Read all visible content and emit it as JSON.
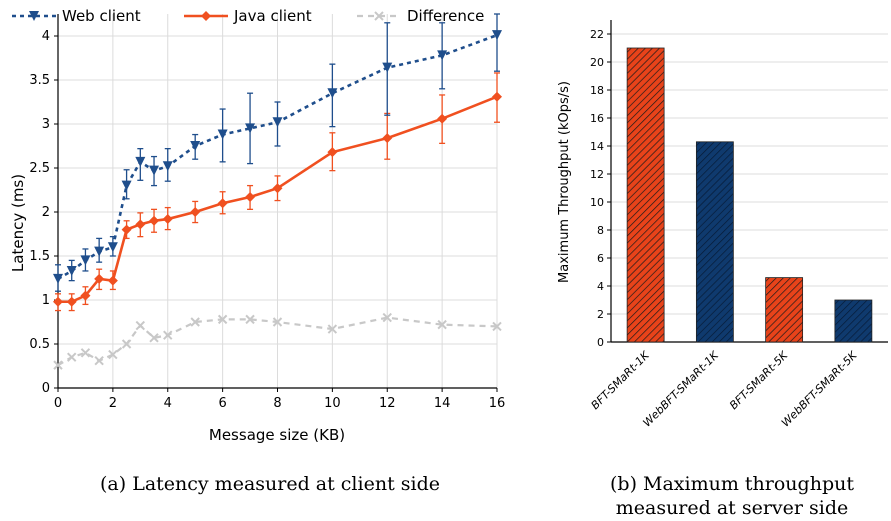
{
  "chart_data": [
    {
      "type": "line",
      "xlabel": "Message size (KB)",
      "ylabel": "Latency (ms)",
      "xlim": [
        0,
        16
      ],
      "ylim": [
        0,
        4.25
      ],
      "xticks": [
        "0",
        "2",
        "4",
        "6",
        "8",
        "10",
        "12",
        "14",
        "16"
      ],
      "yticks": [
        "0",
        "0.5",
        "1",
        "1.5",
        "2",
        "2.5",
        "3",
        "3.5",
        "4"
      ],
      "grid": "both",
      "legend_position": "top",
      "caption": "(a) Latency measured at client side",
      "series": [
        {
          "name": "Web client",
          "color": "#1f4e8c",
          "style": "dotted",
          "marker": "triangle-down",
          "x": [
            0,
            0.5,
            1,
            1.5,
            2,
            2.5,
            3,
            3.5,
            4,
            5,
            6,
            7,
            8,
            10,
            12,
            14,
            16
          ],
          "y": [
            1.24,
            1.33,
            1.45,
            1.55,
            1.6,
            2.3,
            2.57,
            2.47,
            2.52,
            2.75,
            2.88,
            2.95,
            3.02,
            3.35,
            3.64,
            3.78,
            4.01
          ],
          "err_low": [
            1.1,
            1.22,
            1.33,
            1.43,
            1.5,
            2.15,
            2.36,
            2.3,
            2.35,
            2.6,
            2.57,
            2.55,
            2.75,
            2.97,
            3.1,
            3.4,
            3.6
          ],
          "err_high": [
            1.4,
            1.45,
            1.58,
            1.7,
            1.72,
            2.48,
            2.72,
            2.63,
            2.72,
            2.88,
            3.17,
            3.35,
            3.25,
            3.68,
            4.15,
            4.15,
            4.25
          ]
        },
        {
          "name": "Java client",
          "color": "#f05020",
          "style": "solid",
          "marker": "diamond",
          "x": [
            0,
            0.5,
            1,
            1.5,
            2,
            2.5,
            3,
            3.5,
            4,
            5,
            6,
            7,
            8,
            10,
            12,
            14,
            16
          ],
          "y": [
            0.98,
            0.98,
            1.05,
            1.24,
            1.22,
            1.8,
            1.86,
            1.9,
            1.92,
            2.0,
            2.1,
            2.17,
            2.27,
            2.68,
            2.84,
            3.06,
            3.31
          ],
          "err_low": [
            0.88,
            0.88,
            0.95,
            1.12,
            1.12,
            1.7,
            1.72,
            1.77,
            1.8,
            1.88,
            1.98,
            2.03,
            2.13,
            2.47,
            2.6,
            2.78,
            3.02
          ],
          "err_high": [
            1.07,
            1.07,
            1.15,
            1.35,
            1.33,
            1.9,
            1.99,
            2.03,
            2.05,
            2.12,
            2.23,
            2.3,
            2.41,
            2.9,
            3.12,
            3.33,
            3.58
          ]
        },
        {
          "name": "Difference",
          "color": "#c8c8c8",
          "style": "dashed",
          "marker": "x",
          "x": [
            0,
            0.5,
            1,
            1.5,
            2,
            2.5,
            3,
            3.5,
            4,
            5,
            6,
            7,
            8,
            10,
            12,
            14,
            16
          ],
          "y": [
            0.26,
            0.35,
            0.4,
            0.31,
            0.38,
            0.5,
            0.71,
            0.57,
            0.6,
            0.75,
            0.78,
            0.78,
            0.75,
            0.67,
            0.8,
            0.72,
            0.7
          ]
        }
      ]
    },
    {
      "type": "bar",
      "ylabel": "Maximum Throughput (kOps/s)",
      "ylim": [
        0,
        23
      ],
      "yticks": [
        "0",
        "2",
        "4",
        "6",
        "8",
        "10",
        "12",
        "14",
        "16",
        "18",
        "20",
        "22"
      ],
      "grid": "y",
      "caption_line1": "(b) Maximum throughput",
      "caption_line2": "measured at server side",
      "categories": [
        "BFT-SMaRt-1K",
        "WebBFT-SMaRt-1K",
        "BFT-SMaRt-5K",
        "WebBFT-SMaRt-5K"
      ],
      "values": [
        21.0,
        14.3,
        4.6,
        3.0
      ],
      "colors": [
        "#e8431a",
        "#0f3a6e",
        "#e8431a",
        "#0f3a6e"
      ],
      "pattern": "hatched"
    }
  ]
}
